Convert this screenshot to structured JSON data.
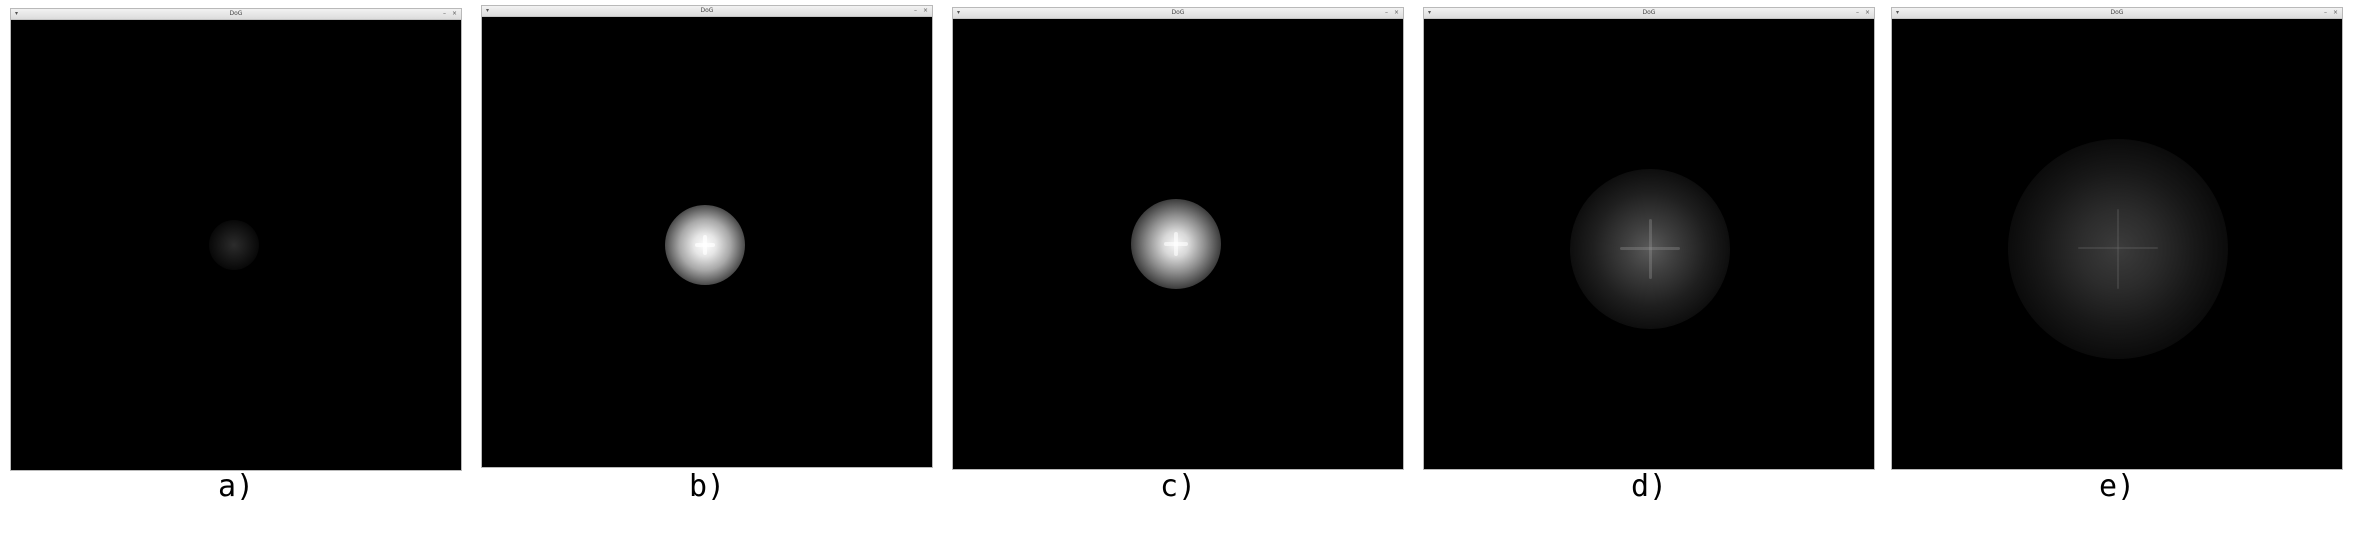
{
  "panels": [
    {
      "window_title": "DoG",
      "caption": "a)",
      "blob_peak": 0.14,
      "blob_color": "#2a2a2a"
    },
    {
      "window_title": "DoG",
      "caption": "b)",
      "blob_peak": 0.95,
      "blob_color": "#f4f4f4"
    },
    {
      "window_title": "DoG",
      "caption": "c)",
      "blob_peak": 0.9,
      "blob_color": "#ececec"
    },
    {
      "window_title": "DoG",
      "caption": "d)",
      "blob_peak": 0.3,
      "blob_color": "#4a4a4a"
    },
    {
      "window_title": "DoG",
      "caption": "e)",
      "blob_peak": 0.2,
      "blob_color": "#353535"
    }
  ],
  "icons": {
    "window_menu": "window-menu-icon",
    "minimize": "minimize-icon",
    "close": "close-icon"
  }
}
